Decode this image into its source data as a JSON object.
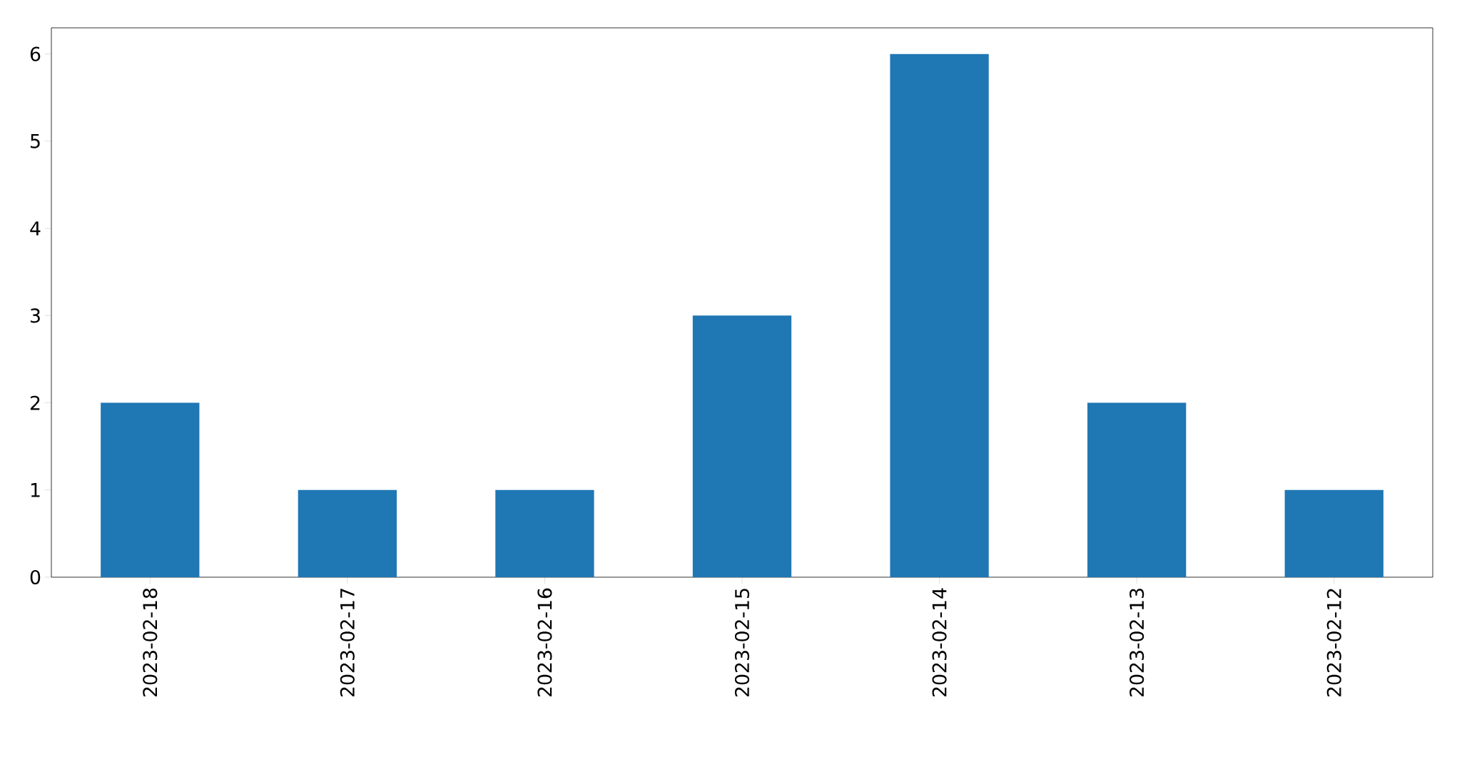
{
  "chart_data": {
    "type": "bar",
    "categories": [
      "2023-02-18",
      "2023-02-17",
      "2023-02-16",
      "2023-02-15",
      "2023-02-14",
      "2023-02-13",
      "2023-02-12"
    ],
    "values": [
      2,
      1,
      1,
      3,
      6,
      2,
      1
    ],
    "color": "#1f77b4",
    "ylim": [
      0,
      6.3
    ],
    "yticks": [
      0,
      1,
      2,
      3,
      4,
      5,
      6
    ]
  }
}
